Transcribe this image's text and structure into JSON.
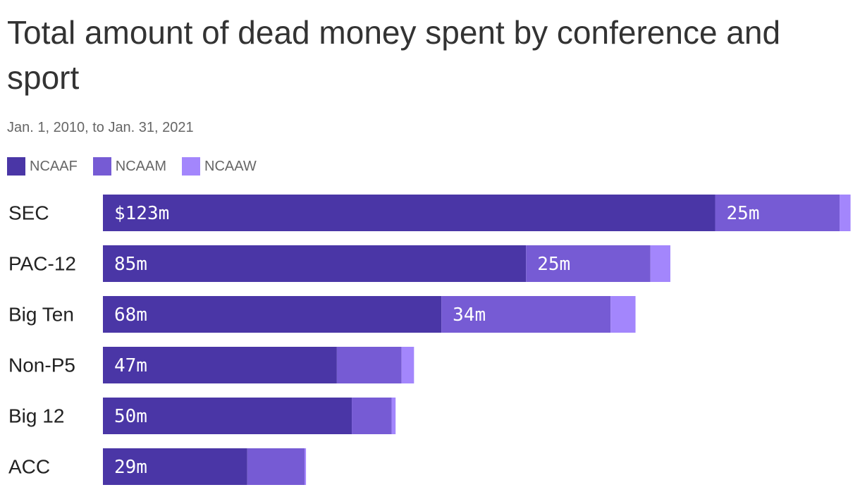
{
  "chart_data": {
    "type": "bar",
    "orientation": "horizontal",
    "stacked": true,
    "title": "Total amount of dead money spent by conference and sport",
    "subtitle": "Jan. 1, 2010, to Jan. 31, 2021",
    "legend_position": "top-left",
    "grid": false,
    "categories": [
      "SEC",
      "PAC-12",
      "Big Ten",
      "Non-P5",
      "Big 12",
      "ACC"
    ],
    "series": [
      {
        "name": "NCAAF",
        "color": "#4a36a6",
        "values": [
          123,
          85,
          68,
          47,
          50,
          29
        ],
        "labels": [
          "$123m",
          "85m",
          "68m",
          "47m",
          "50m",
          "29m"
        ]
      },
      {
        "name": "NCAAM",
        "color": "#765bd4",
        "values": [
          25,
          25,
          34,
          13,
          8,
          11.5
        ],
        "labels": [
          "25m",
          "25m",
          "34m",
          "",
          "",
          ""
        ]
      },
      {
        "name": "NCAAW",
        "color": "#a386fc",
        "values": [
          2.2,
          4,
          5,
          2.5,
          0.8,
          0.3
        ],
        "labels": [
          "",
          "",
          "",
          "",
          "",
          ""
        ]
      }
    ],
    "xlim": [
      0,
      150.4
    ]
  }
}
